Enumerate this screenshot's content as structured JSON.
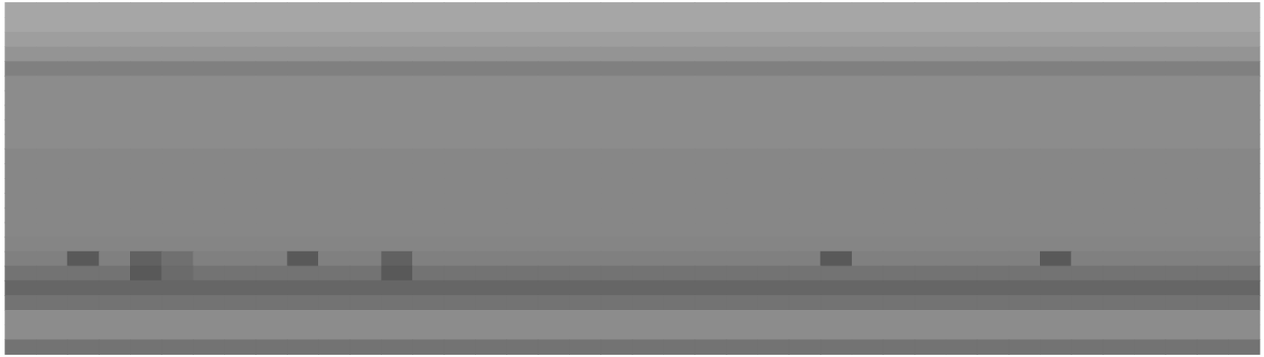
{
  "chart_data": {
    "type": "heatmap",
    "tick_labels": false,
    "zlim": [
      0,
      100
    ],
    "cells": [
      [
        35,
        35,
        35,
        35,
        35,
        35,
        35,
        35,
        35,
        35,
        35,
        35,
        35,
        35,
        35,
        35,
        35,
        35,
        35,
        35,
        35,
        35,
        35,
        35,
        35,
        35,
        35,
        35,
        35,
        35,
        35,
        35,
        35,
        35,
        35,
        35,
        35,
        35,
        35,
        35
      ],
      [
        35,
        35,
        35,
        35,
        35,
        35,
        35,
        35,
        35,
        35,
        35,
        35,
        35,
        35,
        35,
        35,
        35,
        35,
        35,
        35,
        35,
        35,
        35,
        35,
        35,
        35,
        35,
        35,
        35,
        35,
        35,
        35,
        35,
        35,
        35,
        35,
        35,
        35,
        35,
        35
      ],
      [
        38,
        38,
        38,
        38,
        38,
        38,
        38,
        38,
        38,
        38,
        38,
        38,
        38,
        38,
        38,
        38,
        38,
        38,
        38,
        38,
        38,
        38,
        38,
        38,
        38,
        38,
        38,
        38,
        38,
        38,
        38,
        38,
        38,
        38,
        38,
        38,
        38,
        38,
        38,
        38
      ],
      [
        42,
        42,
        42,
        42,
        42,
        42,
        42,
        42,
        42,
        42,
        42,
        42,
        42,
        42,
        42,
        42,
        42,
        42,
        42,
        42,
        42,
        42,
        42,
        42,
        42,
        42,
        42,
        42,
        42,
        42,
        42,
        42,
        42,
        42,
        42,
        42,
        42,
        42,
        42,
        42
      ],
      [
        50,
        50,
        50,
        50,
        50,
        50,
        50,
        50,
        50,
        50,
        50,
        50,
        50,
        50,
        50,
        50,
        50,
        50,
        50,
        50,
        50,
        50,
        50,
        50,
        50,
        50,
        50,
        50,
        50,
        50,
        50,
        50,
        50,
        50,
        50,
        50,
        50,
        50,
        50,
        50
      ],
      [
        45,
        45,
        45,
        45,
        45,
        45,
        45,
        45,
        45,
        45,
        45,
        45,
        45,
        45,
        45,
        45,
        45,
        45,
        45,
        45,
        45,
        45,
        45,
        45,
        45,
        45,
        45,
        45,
        45,
        45,
        45,
        45,
        45,
        45,
        45,
        45,
        45,
        45,
        45,
        45
      ],
      [
        45,
        45,
        45,
        45,
        45,
        45,
        45,
        45,
        45,
        45,
        45,
        45,
        45,
        45,
        45,
        45,
        45,
        45,
        45,
        45,
        45,
        45,
        45,
        45,
        45,
        45,
        45,
        45,
        45,
        45,
        45,
        45,
        45,
        45,
        45,
        45,
        45,
        45,
        45,
        45
      ],
      [
        45,
        45,
        45,
        45,
        45,
        45,
        45,
        45,
        45,
        45,
        45,
        45,
        45,
        45,
        45,
        45,
        45,
        45,
        45,
        45,
        45,
        45,
        45,
        45,
        45,
        45,
        45,
        45,
        45,
        45,
        45,
        45,
        45,
        45,
        45,
        45,
        45,
        45,
        45,
        45
      ],
      [
        45,
        45,
        45,
        45,
        45,
        45,
        45,
        45,
        45,
        45,
        45,
        45,
        45,
        45,
        45,
        45,
        45,
        45,
        45,
        45,
        45,
        45,
        45,
        45,
        45,
        45,
        45,
        45,
        45,
        45,
        45,
        45,
        45,
        45,
        45,
        45,
        45,
        45,
        45,
        45
      ],
      [
        45,
        45,
        45,
        45,
        45,
        45,
        45,
        45,
        45,
        45,
        45,
        45,
        45,
        45,
        45,
        45,
        45,
        45,
        45,
        45,
        45,
        45,
        45,
        45,
        45,
        45,
        45,
        45,
        45,
        45,
        45,
        45,
        45,
        45,
        45,
        45,
        45,
        45,
        45,
        45
      ],
      [
        47,
        47,
        47,
        47,
        47,
        47,
        47,
        47,
        47,
        47,
        47,
        47,
        47,
        47,
        47,
        47,
        47,
        47,
        47,
        47,
        47,
        47,
        47,
        47,
        47,
        47,
        47,
        47,
        47,
        47,
        47,
        47,
        47,
        47,
        47,
        47,
        47,
        47,
        47,
        47
      ],
      [
        47,
        47,
        47,
        47,
        47,
        47,
        47,
        47,
        47,
        47,
        47,
        47,
        47,
        47,
        47,
        47,
        47,
        47,
        47,
        47,
        47,
        47,
        47,
        47,
        47,
        47,
        47,
        47,
        47,
        47,
        47,
        47,
        47,
        47,
        47,
        47,
        47,
        47,
        47,
        47
      ],
      [
        47,
        47,
        47,
        47,
        47,
        47,
        47,
        47,
        47,
        47,
        47,
        47,
        47,
        47,
        47,
        47,
        47,
        47,
        47,
        47,
        47,
        47,
        47,
        47,
        47,
        47,
        47,
        47,
        47,
        47,
        47,
        47,
        47,
        47,
        47,
        47,
        47,
        47,
        47,
        47
      ],
      [
        47,
        47,
        47,
        47,
        47,
        47,
        47,
        47,
        47,
        47,
        47,
        47,
        47,
        47,
        47,
        47,
        47,
        47,
        47,
        47,
        47,
        47,
        47,
        47,
        47,
        47,
        47,
        47,
        47,
        47,
        47,
        47,
        47,
        47,
        47,
        47,
        47,
        47,
        47,
        47
      ],
      [
        47,
        47,
        47,
        47,
        47,
        47,
        47,
        47,
        47,
        47,
        47,
        47,
        47,
        47,
        47,
        47,
        47,
        47,
        47,
        47,
        47,
        47,
        47,
        47,
        47,
        47,
        47,
        47,
        47,
        47,
        47,
        47,
        47,
        47,
        47,
        47,
        47,
        47,
        47,
        47
      ],
      [
        47,
        47,
        47,
        47,
        47,
        47,
        47,
        47,
        47,
        47,
        47,
        47,
        47,
        47,
        47,
        47,
        47,
        47,
        47,
        47,
        47,
        47,
        47,
        47,
        47,
        47,
        47,
        47,
        47,
        47,
        47,
        47,
        47,
        47,
        47,
        47,
        47,
        47,
        47,
        47
      ],
      [
        48,
        48,
        48,
        48,
        48,
        48,
        48,
        48,
        48,
        48,
        48,
        48,
        48,
        48,
        48,
        48,
        48,
        48,
        48,
        48,
        48,
        48,
        48,
        48,
        48,
        48,
        48,
        48,
        48,
        48,
        48,
        48,
        48,
        48,
        48,
        48,
        48,
        48,
        48,
        48
      ],
      [
        50,
        50,
        65,
        50,
        62,
        56,
        50,
        50,
        50,
        65,
        50,
        50,
        62,
        50,
        50,
        50,
        50,
        50,
        50,
        50,
        50,
        50,
        50,
        50,
        50,
        50,
        65,
        50,
        50,
        50,
        50,
        50,
        50,
        65,
        50,
        50,
        50,
        50,
        50,
        50
      ],
      [
        55,
        55,
        55,
        55,
        65,
        58,
        55,
        55,
        55,
        55,
        55,
        55,
        65,
        55,
        55,
        55,
        55,
        55,
        55,
        55,
        55,
        55,
        55,
        55,
        55,
        55,
        55,
        55,
        55,
        55,
        55,
        55,
        55,
        55,
        55,
        55,
        55,
        55,
        55,
        55
      ],
      [
        60,
        60,
        60,
        60,
        60,
        60,
        60,
        60,
        60,
        60,
        60,
        60,
        60,
        60,
        60,
        60,
        60,
        60,
        60,
        60,
        60,
        60,
        60,
        60,
        60,
        60,
        60,
        60,
        60,
        60,
        60,
        60,
        60,
        60,
        60,
        60,
        60,
        60,
        60,
        60
      ],
      [
        55,
        55,
        55,
        55,
        55,
        55,
        55,
        55,
        55,
        55,
        55,
        55,
        55,
        55,
        55,
        55,
        55,
        55,
        55,
        55,
        55,
        55,
        55,
        55,
        55,
        55,
        55,
        55,
        55,
        55,
        55,
        55,
        55,
        55,
        55,
        55,
        55,
        55,
        55,
        55
      ],
      [
        45,
        45,
        45,
        45,
        45,
        45,
        45,
        45,
        45,
        45,
        45,
        45,
        45,
        45,
        45,
        45,
        45,
        45,
        45,
        45,
        45,
        45,
        45,
        45,
        45,
        45,
        45,
        45,
        45,
        45,
        45,
        45,
        45,
        45,
        45,
        45,
        45,
        45,
        45,
        45
      ],
      [
        45,
        45,
        45,
        45,
        45,
        45,
        45,
        45,
        45,
        45,
        45,
        45,
        45,
        45,
        45,
        45,
        45,
        45,
        45,
        45,
        45,
        45,
        45,
        45,
        45,
        45,
        45,
        45,
        45,
        45,
        45,
        45,
        45,
        45,
        45,
        45,
        45,
        45,
        45,
        45
      ],
      [
        55,
        55,
        55,
        55,
        55,
        55,
        55,
        55,
        55,
        55,
        55,
        55,
        55,
        55,
        55,
        55,
        55,
        55,
        55,
        55,
        55,
        55,
        55,
        55,
        55,
        55,
        55,
        55,
        55,
        55,
        55,
        55,
        55,
        55,
        55,
        55,
        55,
        55,
        55,
        55
      ]
    ]
  }
}
